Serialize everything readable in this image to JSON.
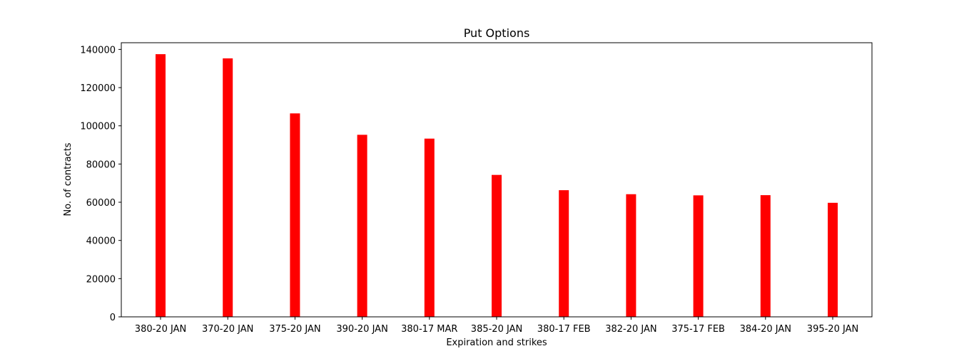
{
  "chart_data": {
    "type": "bar",
    "title": "Put Options",
    "xlabel": "Expiration and strikes",
    "ylabel": "No. of contracts",
    "categories": [
      "380-20 JAN",
      "370-20 JAN",
      "375-20 JAN",
      "390-20 JAN",
      "380-17 MAR",
      "385-20 JAN",
      "380-17 FEB",
      "382-20 JAN",
      "375-17 FEB",
      "384-20 JAN",
      "395-20 JAN"
    ],
    "values": [
      137500,
      135300,
      106500,
      95300,
      93300,
      74300,
      66300,
      64200,
      63600,
      63700,
      59700
    ],
    "ylim": [
      0,
      143500
    ],
    "yticks": [
      0,
      20000,
      40000,
      60000,
      80000,
      100000,
      120000,
      140000
    ],
    "bar_color": "#ff0000",
    "grid": false,
    "legend": "none"
  }
}
